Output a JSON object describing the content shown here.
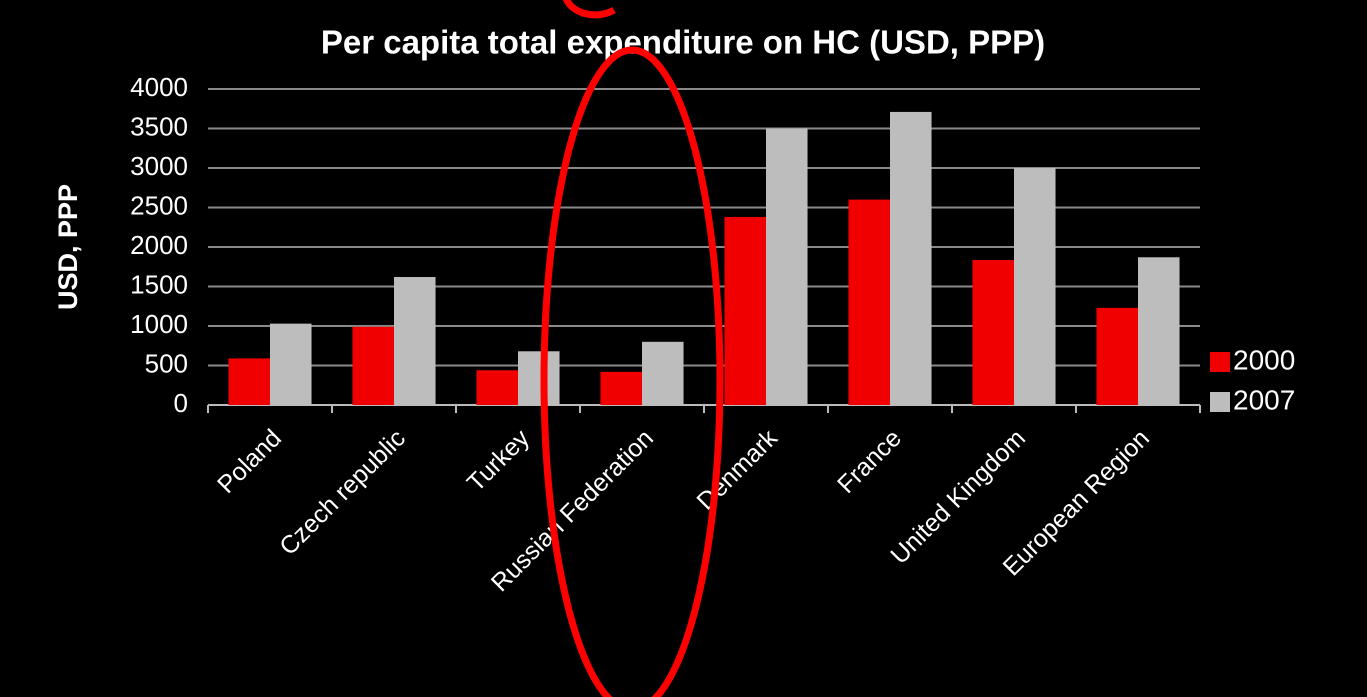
{
  "chart_data": {
    "type": "bar",
    "title": "Per capita total expenditure on HC (USD, PPP)",
    "y_label": "USD, PPP",
    "categories": [
      "Poland",
      "Czech republic",
      "Turkey",
      "Russian Federation",
      "Denmark",
      "France",
      "United Kingdom",
      "European Region"
    ],
    "series": [
      {
        "name": "2000",
        "color": "#f00000",
        "values": [
          590,
          990,
          440,
          420,
          2380,
          2600,
          1835,
          1230
        ]
      },
      {
        "name": "2007",
        "color": "#bdbdbd",
        "values": [
          1030,
          1620,
          680,
          800,
          3500,
          3710,
          3000,
          1870
        ]
      }
    ],
    "ylim": [
      0,
      4000
    ],
    "yticks": [
      0,
      500,
      1000,
      1500,
      2000,
      2500,
      3000,
      3500,
      4000
    ],
    "grid": true,
    "legend": "right"
  }
}
